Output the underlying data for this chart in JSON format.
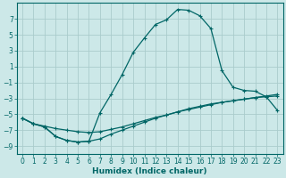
{
  "xlabel": "Humidex (Indice chaleur)",
  "bg_color": "#cce8e8",
  "grid_color": "#aacccc",
  "line_color": "#006666",
  "xlim": [
    -0.5,
    23.5
  ],
  "ylim": [
    -10,
    9
  ],
  "yticks": [
    7,
    5,
    3,
    1,
    -1,
    -3,
    -5,
    -7,
    -9
  ],
  "xticks": [
    0,
    1,
    2,
    3,
    4,
    5,
    6,
    7,
    8,
    9,
    10,
    11,
    12,
    13,
    14,
    15,
    16,
    17,
    18,
    19,
    20,
    21,
    22,
    23
  ],
  "s1_x": [
    0,
    1,
    2,
    3,
    4,
    5,
    6,
    7,
    8,
    9,
    10,
    11,
    12,
    13,
    14,
    15,
    16,
    17,
    18,
    19,
    20,
    21,
    22,
    23
  ],
  "s1_y": [
    -5.5,
    -6.2,
    -6.5,
    -6.8,
    -7.0,
    -7.2,
    -7.3,
    -7.2,
    -6.9,
    -6.6,
    -6.2,
    -5.8,
    -5.4,
    -5.1,
    -4.7,
    -4.4,
    -4.1,
    -3.8,
    -3.5,
    -3.3,
    -3.1,
    -2.9,
    -2.7,
    -2.5
  ],
  "s2_x": [
    0,
    1,
    2,
    3,
    4,
    5,
    6,
    7,
    8,
    9,
    10,
    11,
    12,
    13,
    14,
    15,
    16,
    17,
    18,
    19,
    20,
    21,
    22,
    23
  ],
  "s2_y": [
    -5.5,
    -6.2,
    -6.6,
    -7.8,
    -8.3,
    -8.5,
    -8.4,
    -4.8,
    -2.5,
    0.0,
    2.8,
    4.6,
    6.3,
    6.9,
    8.2,
    8.1,
    7.4,
    5.8,
    0.5,
    -1.6,
    -2.0,
    -2.1,
    -2.8,
    -4.5
  ],
  "s3_x": [
    0,
    1,
    2,
    3,
    4,
    5,
    6,
    7,
    8,
    9,
    10,
    11,
    12,
    13,
    14,
    15,
    16,
    17,
    18,
    19,
    20,
    21,
    22,
    23
  ],
  "s3_y": [
    -5.5,
    -6.2,
    -6.6,
    -7.8,
    -8.3,
    -8.5,
    -8.4,
    -8.1,
    -7.5,
    -7.0,
    -6.5,
    -6.0,
    -5.5,
    -5.1,
    -4.7,
    -4.3,
    -4.0,
    -3.7,
    -3.5,
    -3.3,
    -3.1,
    -2.9,
    -2.8,
    -2.7
  ]
}
